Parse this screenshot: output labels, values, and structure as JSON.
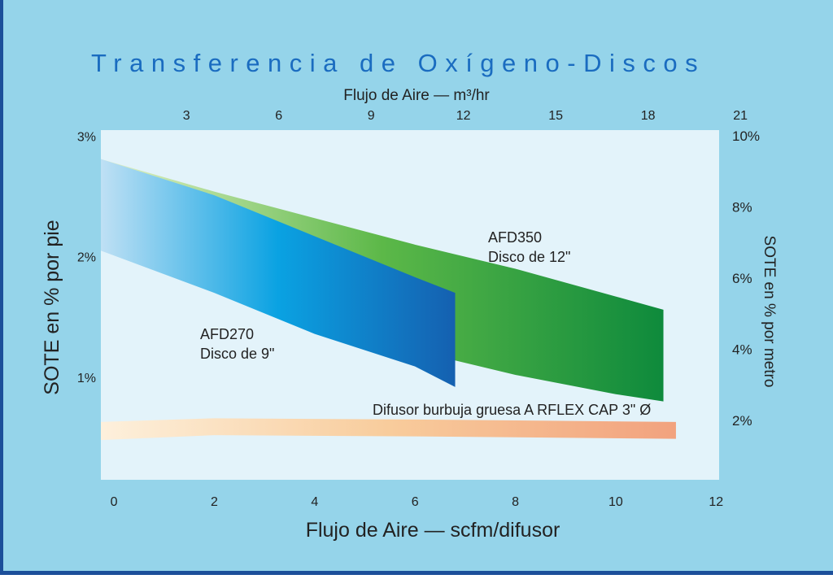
{
  "chart_data": {
    "type": "band",
    "title": "Transferencia de Oxígeno-Discos",
    "x_label": "Flujo de Aire — scfm/difusor",
    "x2_label": "Flujo de Aire — m³/hr",
    "y_label": "SOTE en % por pie",
    "y2_label": "SOTE en % por metro",
    "xlim": [
      -0.26,
      12.06
    ],
    "xticks": [
      0,
      2,
      4,
      6,
      8,
      10,
      12
    ],
    "x2lim": [
      0.22,
      20.31
    ],
    "x2ticks": [
      3,
      6,
      9,
      12,
      15,
      18,
      21
    ],
    "ylim": [
      0.15,
      3.05
    ],
    "yticks": [
      {
        "value": 1,
        "label": "1%"
      },
      {
        "value": 2,
        "label": "2%"
      },
      {
        "value": 3,
        "label": "3%"
      }
    ],
    "y2lim": [
      0.33,
      10.16
    ],
    "y2ticks": [
      {
        "value": 2,
        "label": "2%"
      },
      {
        "value": 4,
        "label": "4%"
      },
      {
        "value": 6,
        "label": "6%"
      },
      {
        "value": 8,
        "label": "8%"
      },
      {
        "value": 10,
        "label": "10%"
      }
    ],
    "grid": false,
    "series": [
      {
        "name": "AFD350",
        "description": "Disco de 12\"",
        "colors": [
          "#e4f2c8",
          "#5cb848",
          "#0e8a3c"
        ],
        "x": [
          -0.26,
          2,
          4,
          6,
          6.8,
          8,
          10,
          10.95
        ],
        "upper": [
          2.81,
          2.54,
          2.32,
          2.1,
          2.02,
          1.9,
          1.67,
          1.56
        ],
        "lower": [
          2.58,
          2.1,
          1.77,
          1.29,
          1.14,
          1.02,
          0.86,
          0.8
        ]
      },
      {
        "name": "AFD270",
        "description": "Disco de 9\"",
        "colors": [
          "#bfe0f4",
          "#0aa2e2",
          "#1560b0"
        ],
        "x": [
          -0.26,
          2,
          4,
          6,
          6.8
        ],
        "upper": [
          2.81,
          2.51,
          2.17,
          1.83,
          1.7
        ],
        "lower": [
          2.05,
          1.7,
          1.36,
          1.09,
          0.92
        ]
      },
      {
        "name": "Difusor burbuja gruesa A RFLEX CAP 3\" Ø",
        "colors": [
          "#fdf0dc",
          "#f8cc9c",
          "#f2a27e"
        ],
        "x": [
          -0.26,
          2,
          6,
          11.2
        ],
        "upper": [
          0.63,
          0.66,
          0.65,
          0.63
        ],
        "lower": [
          0.48,
          0.52,
          0.51,
          0.49
        ]
      }
    ]
  }
}
